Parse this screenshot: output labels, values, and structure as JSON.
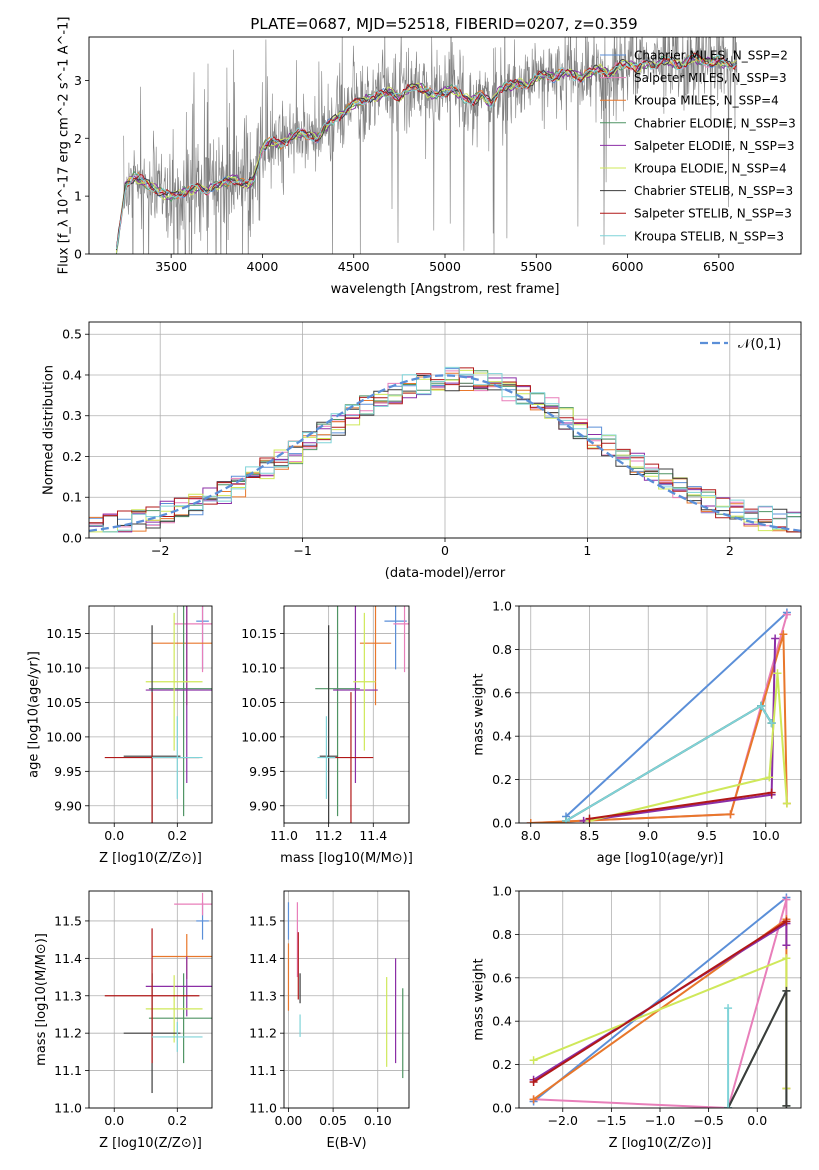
{
  "figure_title": "PLATE=0687, MJD=52518, FIBERID=0207, z=0.359",
  "colors": {
    "Chabrier MILES": "#5b8fd8",
    "Salpeter MILES": "#e87fba",
    "Kroupa MILES": "#e8772b",
    "Chabrier ELODIE": "#4f9464",
    "Salpeter ELODIE": "#8b2ea6",
    "Kroupa ELODIE": "#cfe85a",
    "Chabrier STELIB": "#3c3c3c",
    "Salpeter STELIB": "#b11818",
    "Kroupa STELIB": "#7fd3d8",
    "data": "#808080",
    "gaussian": "#5b8fd8",
    "grid": "#b0b0b0"
  },
  "chart_data": [
    {
      "id": "spectrum",
      "type": "line",
      "title": "PLATE=0687, MJD=52518, FIBERID=0207, z=0.359",
      "xlabel": "wavelength [Angstrom, rest frame]",
      "ylabel": "Flux [f_λ 10^-17 erg cm^-2 s^-1 A^-1]",
      "xlim": [
        3050,
        6950
      ],
      "ylim": [
        0,
        3.75
      ],
      "xticks": [
        3500,
        4000,
        4500,
        5000,
        5500,
        6000,
        6500
      ],
      "yticks": [
        0,
        1,
        2,
        3
      ],
      "grid": false,
      "legend_position": "upper-right",
      "legend": [
        "Chabrier MILES, N_SSP=2",
        "Salpeter MILES, N_SSP=3",
        "Kroupa MILES, N_SSP=4",
        "Chabrier ELODIE, N_SSP=3",
        "Salpeter ELODIE, N_SSP=3",
        "Kroupa ELODIE, N_SSP=4",
        "Chabrier STELIB, N_SSP=3",
        "Salpeter STELIB, N_SSP=3",
        "Kroupa STELIB, N_SSP=3"
      ],
      "model_continuum": {
        "x": [
          3200,
          3250,
          3300,
          3350,
          3400,
          3450,
          3500,
          3550,
          3600,
          3650,
          3700,
          3750,
          3800,
          3850,
          3900,
          3950,
          4000,
          4050,
          4100,
          4150,
          4200,
          4250,
          4300,
          4350,
          4400,
          4450,
          4500,
          4550,
          4600,
          4650,
          4700,
          4750,
          4800,
          4850,
          4900,
          4950,
          5000,
          5050,
          5100,
          5150,
          5200,
          5250,
          5300,
          5350,
          5400,
          5450,
          5500,
          5550,
          5600,
          5650,
          5700,
          5750,
          5800,
          5850,
          5900,
          5950,
          6000,
          6050,
          6100,
          6150,
          6200,
          6250,
          6300,
          6350,
          6400,
          6450,
          6500,
          6550,
          6600
        ],
        "y": [
          0.05,
          1.2,
          1.35,
          1.25,
          1.15,
          1.05,
          1.0,
          1.05,
          1.1,
          1.15,
          1.1,
          1.2,
          1.25,
          1.3,
          1.2,
          1.25,
          1.85,
          1.95,
          1.9,
          2.0,
          2.1,
          2.05,
          2.0,
          2.2,
          2.35,
          2.45,
          2.6,
          2.65,
          2.7,
          2.75,
          2.8,
          2.7,
          2.85,
          2.9,
          2.8,
          2.75,
          2.8,
          2.85,
          2.7,
          2.65,
          2.75,
          2.6,
          2.85,
          2.9,
          2.95,
          2.9,
          3.05,
          3.1,
          3.05,
          3.15,
          3.1,
          3.05,
          3.15,
          3.2,
          3.1,
          3.25,
          3.3,
          3.2,
          3.3,
          3.25,
          3.35,
          3.3,
          3.25,
          3.4,
          3.35,
          3.3,
          3.35,
          3.25,
          3.3
        ]
      },
      "data_range": [
        3240,
        6600
      ]
    },
    {
      "id": "residuals",
      "type": "line",
      "xlabel": "(data-model)/error",
      "ylabel": "Normed distribution",
      "xlim": [
        -2.5,
        2.5
      ],
      "ylim": [
        0,
        0.53
      ],
      "xticks": [
        -2,
        -1,
        0,
        1,
        2
      ],
      "yticks": [
        0.0,
        0.1,
        0.2,
        0.3,
        0.4,
        0.5
      ],
      "grid": true,
      "legend_position": "upper-right",
      "legend": [
        "𝒩(0,1)"
      ],
      "bin_width": 0.1
    },
    {
      "id": "age-vs-Z",
      "type": "scatter",
      "xlabel": "Z [log10(Z/Z⊙)]",
      "ylabel": "age  [log10(age/yr)]",
      "xlim": [
        -0.08,
        0.31
      ],
      "ylim": [
        9.875,
        10.19
      ],
      "xticks": [
        0.0,
        0.2
      ],
      "yticks": [
        9.9,
        9.95,
        10.0,
        10.05,
        10.1,
        10.15
      ],
      "grid": true,
      "points": [
        {
          "model": "Chabrier MILES",
          "x": 0.28,
          "y": 10.168,
          "xerr": 0.02,
          "yerr": 0.07
        },
        {
          "model": "Salpeter MILES",
          "x": 0.28,
          "y": 10.164,
          "xerr": 0.09,
          "yerr": 0.07
        },
        {
          "model": "Kroupa MILES",
          "x": 0.23,
          "y": 10.136,
          "xerr": 0.11,
          "yerr": 0.09
        },
        {
          "model": "Chabrier ELODIE",
          "x": 0.22,
          "y": 10.07,
          "xerr": 0.11,
          "yerr": 0.185
        },
        {
          "model": "Salpeter ELODIE",
          "x": 0.23,
          "y": 10.068,
          "xerr": 0.13,
          "yerr": 0.135
        },
        {
          "model": "Kroupa ELODIE",
          "x": 0.19,
          "y": 10.08,
          "xerr": 0.09,
          "yerr": 0.1
        },
        {
          "model": "Chabrier STELIB",
          "x": 0.12,
          "y": 9.972,
          "xerr": 0.09,
          "yerr": 0.19
        },
        {
          "model": "Salpeter STELIB",
          "x": 0.12,
          "y": 9.97,
          "xerr": 0.15,
          "yerr": 0.095
        },
        {
          "model": "Kroupa STELIB",
          "x": 0.2,
          "y": 9.97,
          "xerr": 0.08,
          "yerr": 0.06
        }
      ]
    },
    {
      "id": "age-vs-mass",
      "type": "scatter",
      "xlabel": "mass [log10(M/M⊙)]",
      "ylim": [
        9.875,
        10.19
      ],
      "xlim": [
        11.0,
        11.56
      ],
      "xticks": [
        11.0,
        11.2,
        11.4
      ],
      "yticks": [
        9.9,
        9.95,
        10.0,
        10.05,
        10.1,
        10.15
      ],
      "grid": true,
      "points": [
        {
          "model": "Chabrier MILES",
          "x": 11.5,
          "y": 10.168,
          "xerr": 0.05,
          "yerr": 0.07
        },
        {
          "model": "Salpeter MILES",
          "x": 11.54,
          "y": 10.164,
          "xerr": 0.05,
          "yerr": 0.07
        },
        {
          "model": "Kroupa MILES",
          "x": 11.41,
          "y": 10.136,
          "xerr": 0.07,
          "yerr": 0.09
        },
        {
          "model": "Chabrier ELODIE",
          "x": 11.24,
          "y": 10.07,
          "xerr": 0.1,
          "yerr": 0.185
        },
        {
          "model": "Salpeter ELODIE",
          "x": 11.32,
          "y": 10.068,
          "xerr": 0.1,
          "yerr": 0.135
        },
        {
          "model": "Kroupa ELODIE",
          "x": 11.36,
          "y": 10.08,
          "xerr": 0.05,
          "yerr": 0.1
        },
        {
          "model": "Chabrier STELIB",
          "x": 11.2,
          "y": 9.972,
          "xerr": 0.04,
          "yerr": 0.19
        },
        {
          "model": "Salpeter STELIB",
          "x": 11.3,
          "y": 9.97,
          "xerr": 0.1,
          "yerr": 0.095
        },
        {
          "model": "Kroupa STELIB",
          "x": 11.19,
          "y": 9.97,
          "xerr": 0.04,
          "yerr": 0.06
        }
      ]
    },
    {
      "id": "mass-weight-vs-age",
      "type": "line",
      "xlabel": "age  [log10(age/yr)]",
      "ylabel": "mass weight",
      "xlim": [
        7.9,
        10.3
      ],
      "ylim": [
        0,
        1.0
      ],
      "xticks": [
        8.0,
        8.5,
        9.0,
        9.5,
        10.0
      ],
      "yticks": [
        0.0,
        0.2,
        0.4,
        0.6,
        0.8,
        1.0
      ],
      "grid": true,
      "series": [
        {
          "model": "Chabrier MILES",
          "x": [
            8.3,
            10.18
          ],
          "y": [
            0.03,
            0.97
          ]
        },
        {
          "model": "Salpeter MILES",
          "x": [
            8.0,
            9.7,
            10.18
          ],
          "y": [
            0.0,
            0.04,
            0.96
          ]
        },
        {
          "model": "Kroupa MILES",
          "x": [
            8.0,
            9.7,
            10.15,
            10.18
          ],
          "y": [
            0.0,
            0.04,
            0.87,
            0.09
          ]
        },
        {
          "model": "Chabrier ELODIE",
          "x": [
            8.3,
            9.96,
            10.05
          ],
          "y": [
            0.01,
            0.54,
            0.46
          ]
        },
        {
          "model": "Salpeter ELODIE",
          "x": [
            8.45,
            10.05,
            10.08
          ],
          "y": [
            0.01,
            0.13,
            0.85
          ]
        },
        {
          "model": "Kroupa ELODIE",
          "x": [
            8.5,
            10.03,
            10.1,
            10.18
          ],
          "y": [
            0.01,
            0.21,
            0.69,
            0.09
          ]
        },
        {
          "model": "Chabrier STELIB",
          "x": [
            8.3,
            9.96,
            10.05
          ],
          "y": [
            0.01,
            0.54,
            0.46
          ]
        },
        {
          "model": "Salpeter STELIB",
          "x": [
            8.5,
            10.05
          ],
          "y": [
            0.02,
            0.14
          ]
        },
        {
          "model": "Kroupa STELIB",
          "x": [
            8.3,
            9.96,
            10.05
          ],
          "y": [
            0.01,
            0.54,
            0.46
          ]
        }
      ]
    },
    {
      "id": "mass-vs-Z",
      "type": "scatter",
      "xlabel": "Z [log10(Z/Z⊙)]",
      "ylabel": "mass [log10(M/M⊙)]",
      "xlim": [
        -0.08,
        0.31
      ],
      "ylim": [
        11.0,
        11.58
      ],
      "xticks": [
        0.0,
        0.2
      ],
      "yticks": [
        11.0,
        11.1,
        11.2,
        11.3,
        11.4,
        11.5
      ],
      "grid": true,
      "points": [
        {
          "model": "Chabrier MILES",
          "x": 0.28,
          "y": 11.5,
          "xerr": 0.02,
          "yerr": 0.05
        },
        {
          "model": "Salpeter MILES",
          "x": 0.28,
          "y": 11.545,
          "xerr": 0.09,
          "yerr": 0.03
        },
        {
          "model": "Kroupa MILES",
          "x": 0.23,
          "y": 11.405,
          "xerr": 0.11,
          "yerr": 0.06
        },
        {
          "model": "Chabrier ELODIE",
          "x": 0.22,
          "y": 11.24,
          "xerr": 0.11,
          "yerr": 0.12
        },
        {
          "model": "Salpeter ELODIE",
          "x": 0.23,
          "y": 11.325,
          "xerr": 0.13,
          "yerr": 0.08
        },
        {
          "model": "Kroupa ELODIE",
          "x": 0.19,
          "y": 11.265,
          "xerr": 0.09,
          "yerr": 0.09
        },
        {
          "model": "Chabrier STELIB",
          "x": 0.12,
          "y": 11.2,
          "xerr": 0.09,
          "yerr": 0.16
        },
        {
          "model": "Salpeter STELIB",
          "x": 0.12,
          "y": 11.3,
          "xerr": 0.15,
          "yerr": 0.18
        },
        {
          "model": "Kroupa STELIB",
          "x": 0.2,
          "y": 11.19,
          "xerr": 0.08,
          "yerr": 0.04
        }
      ]
    },
    {
      "id": "mass-vs-EBV",
      "type": "scatter",
      "xlabel": "E(B-V)",
      "xlim": [
        -0.005,
        0.135
      ],
      "ylim": [
        11.0,
        11.58
      ],
      "xticks": [
        0.0,
        0.05,
        0.1
      ],
      "yticks": [
        11.0,
        11.1,
        11.2,
        11.3,
        11.4,
        11.5
      ],
      "grid": true,
      "points": [
        {
          "model": "Chabrier MILES",
          "x": 0.0,
          "y": 11.5,
          "yerr": 0.05
        },
        {
          "model": "Salpeter MILES",
          "x": 0.01,
          "y": 11.45,
          "yerr": 0.1
        },
        {
          "model": "Kroupa MILES",
          "x": 0.0,
          "y": 11.35,
          "yerr": 0.09
        },
        {
          "model": "Chabrier ELODIE",
          "x": 0.128,
          "y": 11.2,
          "yerr": 0.12
        },
        {
          "model": "Salpeter ELODIE",
          "x": 0.12,
          "y": 11.26,
          "yerr": 0.14
        },
        {
          "model": "Kroupa ELODIE",
          "x": 0.11,
          "y": 11.23,
          "yerr": 0.12
        },
        {
          "model": "Chabrier STELIB",
          "x": 0.013,
          "y": 11.32,
          "yerr": 0.04
        },
        {
          "model": "Salpeter STELIB",
          "x": 0.011,
          "y": 11.38,
          "yerr": 0.09
        },
        {
          "model": "Kroupa STELIB",
          "x": 0.013,
          "y": 11.22,
          "yerr": 0.03
        }
      ]
    },
    {
      "id": "mass-weight-vs-Z",
      "type": "line",
      "xlabel": "Z [log10(Z/Z⊙)]",
      "ylabel": "mass weight",
      "xlim": [
        -2.45,
        0.45
      ],
      "ylim": [
        0,
        1.0
      ],
      "xticks": [
        -2.0,
        -1.5,
        -1.0,
        -0.5,
        0.0
      ],
      "yticks": [
        0.0,
        0.2,
        0.4,
        0.6,
        0.8,
        1.0
      ],
      "grid": true,
      "series": [
        {
          "model": "Chabrier MILES",
          "x": [
            -2.3,
            0.3
          ],
          "y": [
            0.03,
            0.97
          ]
        },
        {
          "model": "Salpeter MILES",
          "x": [
            -2.3,
            -0.3,
            0.3,
            0.3
          ],
          "y": [
            0.04,
            0.0,
            0.96,
            0.85
          ]
        },
        {
          "model": "Kroupa MILES",
          "x": [
            -2.3,
            0.3,
            0.3
          ],
          "y": [
            0.04,
            0.87,
            0.09
          ]
        },
        {
          "model": "Chabrier ELODIE",
          "x": [
            -0.3,
            0.3,
            0.3
          ],
          "y": [
            0.0,
            0.54,
            0.01
          ]
        },
        {
          "model": "Salpeter ELODIE",
          "x": [
            -2.3,
            0.3,
            0.3
          ],
          "y": [
            0.13,
            0.85,
            0.75
          ]
        },
        {
          "model": "Kroupa ELODIE",
          "x": [
            -2.3,
            0.3,
            0.3
          ],
          "y": [
            0.22,
            0.69,
            0.09
          ]
        },
        {
          "model": "Chabrier STELIB",
          "x": [
            -0.3,
            0.3,
            0.3
          ],
          "y": [
            0.0,
            0.54,
            0.01
          ]
        },
        {
          "model": "Salpeter STELIB",
          "x": [
            -2.3,
            0.3
          ],
          "y": [
            0.12,
            0.86
          ]
        },
        {
          "model": "Kroupa STELIB",
          "x": [
            -0.3,
            -0.3
          ],
          "y": [
            0.0,
            0.46
          ]
        }
      ]
    }
  ]
}
